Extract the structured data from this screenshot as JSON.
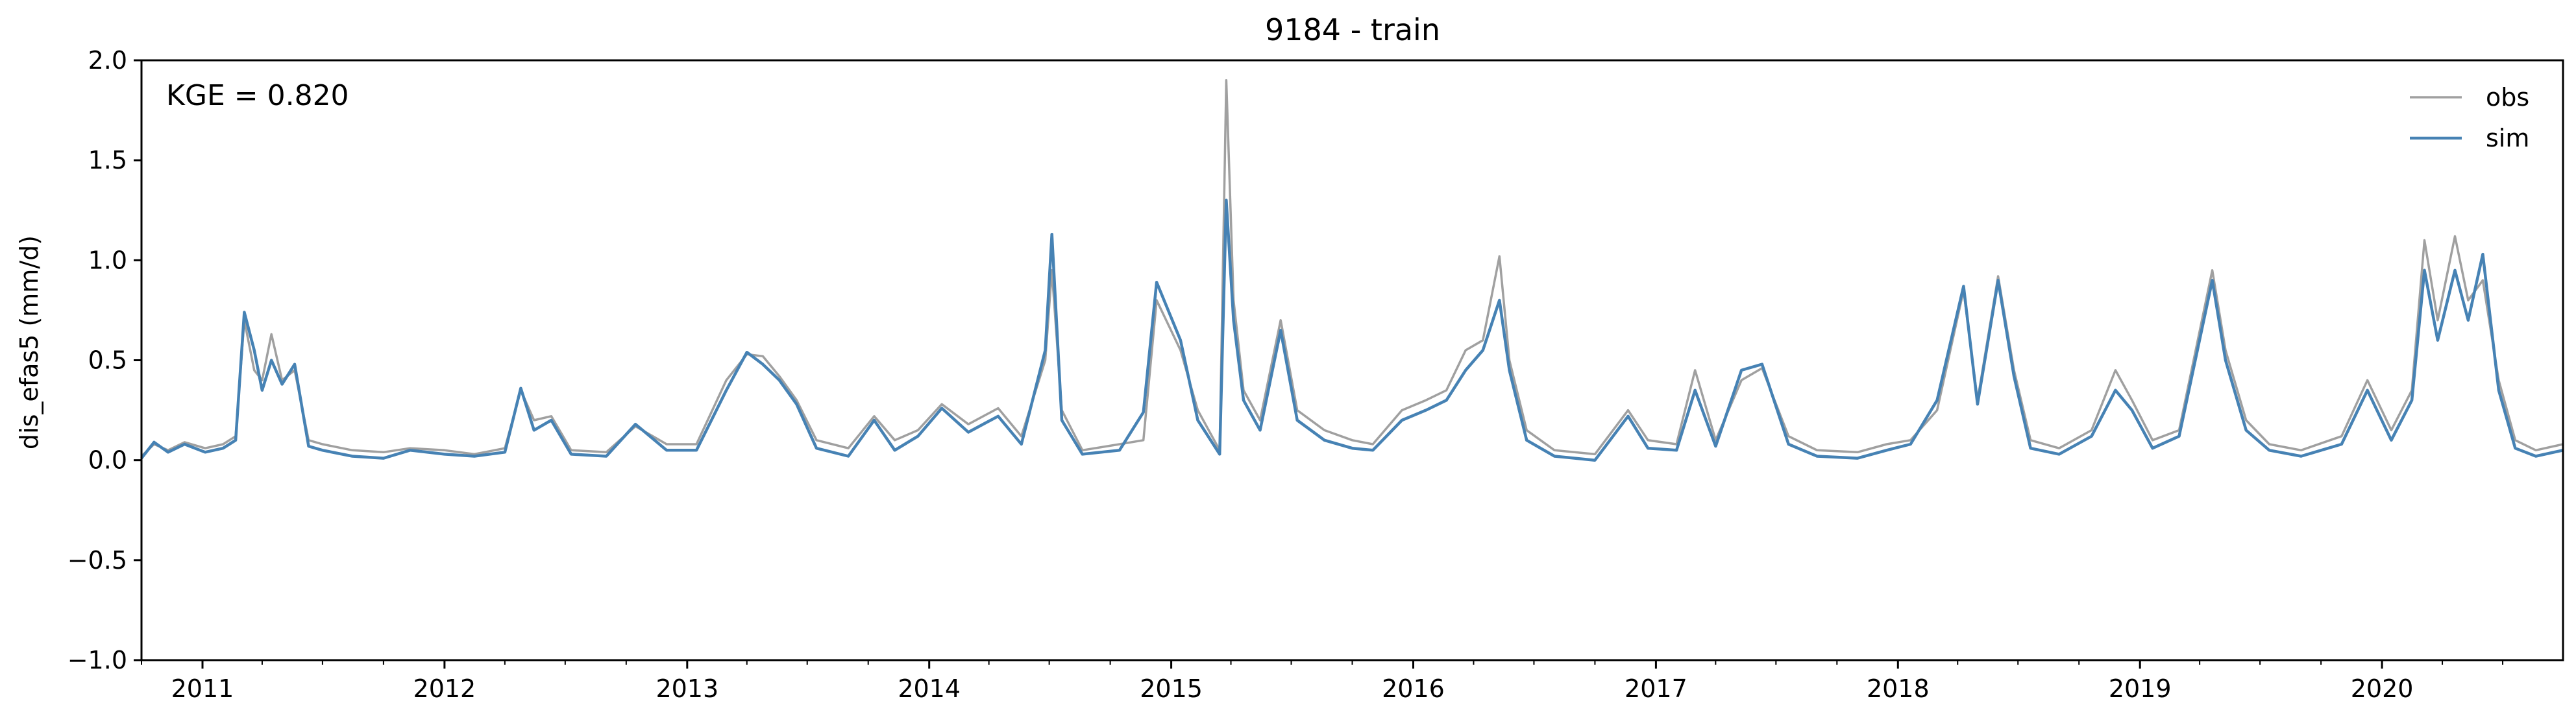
{
  "chart_data": {
    "type": "line",
    "title": "9184 - train",
    "xlabel": "",
    "ylabel": "dis_efas5 (mm/d)",
    "annotation": "KGE = 0.820",
    "xlim": [
      "2010-10-01",
      "2020-09-30"
    ],
    "ylim": [
      -1.0,
      2.0
    ],
    "yticks": [
      -1.0,
      -0.5,
      0.0,
      0.5,
      1.0,
      1.5,
      2.0
    ],
    "ytick_labels": [
      "−1.0",
      "−0.5",
      "0.0",
      "0.5",
      "1.0",
      "1.5",
      "2.0"
    ],
    "xtick_labels": [
      "2011",
      "2012",
      "2013",
      "2014",
      "2015",
      "2016",
      "2017",
      "2018",
      "2019",
      "2020"
    ],
    "xticks": [
      "2011-01-01",
      "2012-01-01",
      "2013-01-01",
      "2014-01-01",
      "2015-01-01",
      "2016-01-01",
      "2017-01-01",
      "2018-01-01",
      "2019-01-01",
      "2020-01-01"
    ],
    "grid": false,
    "legend_position": "top-right",
    "series": [
      {
        "name": "obs",
        "color": "#a0a0a0",
        "points": [
          [
            "2010-10-01",
            0.02
          ],
          [
            "2010-10-20",
            0.08
          ],
          [
            "2010-11-10",
            0.05
          ],
          [
            "2010-12-05",
            0.09
          ],
          [
            "2011-01-05",
            0.06
          ],
          [
            "2011-02-01",
            0.08
          ],
          [
            "2011-02-20",
            0.12
          ],
          [
            "2011-03-05",
            0.7
          ],
          [
            "2011-03-20",
            0.45
          ],
          [
            "2011-04-01",
            0.4
          ],
          [
            "2011-04-15",
            0.63
          ],
          [
            "2011-05-01",
            0.4
          ],
          [
            "2011-05-20",
            0.45
          ],
          [
            "2011-06-10",
            0.1
          ],
          [
            "2011-07-01",
            0.08
          ],
          [
            "2011-08-15",
            0.05
          ],
          [
            "2011-10-01",
            0.04
          ],
          [
            "2011-11-10",
            0.06
          ],
          [
            "2012-01-01",
            0.05
          ],
          [
            "2012-02-15",
            0.03
          ],
          [
            "2012-04-01",
            0.06
          ],
          [
            "2012-04-25",
            0.35
          ],
          [
            "2012-05-15",
            0.2
          ],
          [
            "2012-06-10",
            0.22
          ],
          [
            "2012-07-10",
            0.05
          ],
          [
            "2012-09-01",
            0.04
          ],
          [
            "2012-10-15",
            0.17
          ],
          [
            "2012-12-01",
            0.08
          ],
          [
            "2013-01-15",
            0.08
          ],
          [
            "2013-03-01",
            0.4
          ],
          [
            "2013-04-01",
            0.53
          ],
          [
            "2013-04-25",
            0.52
          ],
          [
            "2013-05-20",
            0.42
          ],
          [
            "2013-06-15",
            0.3
          ],
          [
            "2013-07-15",
            0.1
          ],
          [
            "2013-09-01",
            0.06
          ],
          [
            "2013-10-10",
            0.22
          ],
          [
            "2013-11-10",
            0.1
          ],
          [
            "2013-12-15",
            0.15
          ],
          [
            "2014-01-20",
            0.28
          ],
          [
            "2014-03-01",
            0.18
          ],
          [
            "2014-04-15",
            0.26
          ],
          [
            "2014-05-20",
            0.12
          ],
          [
            "2014-06-25",
            0.5
          ],
          [
            "2014-07-05",
            0.95
          ],
          [
            "2014-07-20",
            0.25
          ],
          [
            "2014-08-20",
            0.05
          ],
          [
            "2014-10-15",
            0.08
          ],
          [
            "2014-11-20",
            0.1
          ],
          [
            "2014-12-10",
            0.8
          ],
          [
            "2015-01-15",
            0.55
          ],
          [
            "2015-02-10",
            0.25
          ],
          [
            "2015-03-15",
            0.05
          ],
          [
            "2015-03-25",
            1.9
          ],
          [
            "2015-04-05",
            0.8
          ],
          [
            "2015-04-20",
            0.35
          ],
          [
            "2015-05-15",
            0.2
          ],
          [
            "2015-06-15",
            0.7
          ],
          [
            "2015-07-10",
            0.25
          ],
          [
            "2015-08-20",
            0.15
          ],
          [
            "2015-10-01",
            0.1
          ],
          [
            "2015-11-01",
            0.08
          ],
          [
            "2015-12-15",
            0.25
          ],
          [
            "2016-01-20",
            0.3
          ],
          [
            "2016-02-20",
            0.35
          ],
          [
            "2016-03-20",
            0.55
          ],
          [
            "2016-04-15",
            0.6
          ],
          [
            "2016-05-10",
            1.02
          ],
          [
            "2016-05-25",
            0.5
          ],
          [
            "2016-06-20",
            0.15
          ],
          [
            "2016-08-01",
            0.05
          ],
          [
            "2016-10-01",
            0.03
          ],
          [
            "2016-11-20",
            0.25
          ],
          [
            "2016-12-20",
            0.1
          ],
          [
            "2017-02-01",
            0.08
          ],
          [
            "2017-03-01",
            0.45
          ],
          [
            "2017-04-01",
            0.1
          ],
          [
            "2017-05-10",
            0.4
          ],
          [
            "2017-06-10",
            0.46
          ],
          [
            "2017-07-20",
            0.12
          ],
          [
            "2017-09-01",
            0.05
          ],
          [
            "2017-11-01",
            0.04
          ],
          [
            "2017-12-15",
            0.08
          ],
          [
            "2018-01-20",
            0.1
          ],
          [
            "2018-03-01",
            0.25
          ],
          [
            "2018-04-10",
            0.85
          ],
          [
            "2018-05-01",
            0.3
          ],
          [
            "2018-06-01",
            0.92
          ],
          [
            "2018-06-25",
            0.45
          ],
          [
            "2018-07-20",
            0.1
          ],
          [
            "2018-09-01",
            0.06
          ],
          [
            "2018-10-20",
            0.15
          ],
          [
            "2018-11-25",
            0.45
          ],
          [
            "2018-12-20",
            0.3
          ],
          [
            "2019-01-20",
            0.1
          ],
          [
            "2019-03-01",
            0.15
          ],
          [
            "2019-04-20",
            0.95
          ],
          [
            "2019-05-10",
            0.55
          ],
          [
            "2019-06-10",
            0.2
          ],
          [
            "2019-07-15",
            0.08
          ],
          [
            "2019-09-01",
            0.05
          ],
          [
            "2019-11-01",
            0.12
          ],
          [
            "2019-12-10",
            0.4
          ],
          [
            "2020-01-15",
            0.15
          ],
          [
            "2020-02-15",
            0.35
          ],
          [
            "2020-03-05",
            1.1
          ],
          [
            "2020-03-25",
            0.7
          ],
          [
            "2020-04-20",
            1.12
          ],
          [
            "2020-05-10",
            0.8
          ],
          [
            "2020-06-01",
            0.9
          ],
          [
            "2020-06-25",
            0.4
          ],
          [
            "2020-07-20",
            0.1
          ],
          [
            "2020-08-20",
            0.05
          ],
          [
            "2020-09-30",
            0.08
          ]
        ]
      },
      {
        "name": "sim",
        "color": "#4682b4",
        "points": [
          [
            "2010-10-01",
            0.01
          ],
          [
            "2010-10-20",
            0.09
          ],
          [
            "2010-11-10",
            0.04
          ],
          [
            "2010-12-05",
            0.08
          ],
          [
            "2011-01-05",
            0.04
          ],
          [
            "2011-02-01",
            0.06
          ],
          [
            "2011-02-20",
            0.1
          ],
          [
            "2011-03-05",
            0.74
          ],
          [
            "2011-03-20",
            0.55
          ],
          [
            "2011-04-01",
            0.35
          ],
          [
            "2011-04-15",
            0.5
          ],
          [
            "2011-05-01",
            0.38
          ],
          [
            "2011-05-20",
            0.48
          ],
          [
            "2011-06-10",
            0.07
          ],
          [
            "2011-07-01",
            0.05
          ],
          [
            "2011-08-15",
            0.02
          ],
          [
            "2011-10-01",
            0.01
          ],
          [
            "2011-11-10",
            0.05
          ],
          [
            "2012-01-01",
            0.03
          ],
          [
            "2012-02-15",
            0.02
          ],
          [
            "2012-04-01",
            0.04
          ],
          [
            "2012-04-25",
            0.36
          ],
          [
            "2012-05-15",
            0.15
          ],
          [
            "2012-06-10",
            0.2
          ],
          [
            "2012-07-10",
            0.03
          ],
          [
            "2012-09-01",
            0.02
          ],
          [
            "2012-10-15",
            0.18
          ],
          [
            "2012-12-01",
            0.05
          ],
          [
            "2013-01-15",
            0.05
          ],
          [
            "2013-03-01",
            0.35
          ],
          [
            "2013-04-01",
            0.54
          ],
          [
            "2013-04-25",
            0.48
          ],
          [
            "2013-05-20",
            0.4
          ],
          [
            "2013-06-15",
            0.28
          ],
          [
            "2013-07-15",
            0.06
          ],
          [
            "2013-09-01",
            0.02
          ],
          [
            "2013-10-10",
            0.2
          ],
          [
            "2013-11-10",
            0.05
          ],
          [
            "2013-12-15",
            0.12
          ],
          [
            "2014-01-20",
            0.26
          ],
          [
            "2014-03-01",
            0.14
          ],
          [
            "2014-04-15",
            0.22
          ],
          [
            "2014-05-20",
            0.08
          ],
          [
            "2014-06-25",
            0.55
          ],
          [
            "2014-07-05",
            1.13
          ],
          [
            "2014-07-20",
            0.2
          ],
          [
            "2014-08-20",
            0.03
          ],
          [
            "2014-10-15",
            0.05
          ],
          [
            "2014-11-20",
            0.24
          ],
          [
            "2014-12-10",
            0.89
          ],
          [
            "2015-01-15",
            0.6
          ],
          [
            "2015-02-10",
            0.2
          ],
          [
            "2015-03-15",
            0.03
          ],
          [
            "2015-03-25",
            1.3
          ],
          [
            "2015-04-05",
            0.7
          ],
          [
            "2015-04-20",
            0.3
          ],
          [
            "2015-05-15",
            0.15
          ],
          [
            "2015-06-15",
            0.65
          ],
          [
            "2015-07-10",
            0.2
          ],
          [
            "2015-08-20",
            0.1
          ],
          [
            "2015-10-01",
            0.06
          ],
          [
            "2015-11-01",
            0.05
          ],
          [
            "2015-12-15",
            0.2
          ],
          [
            "2016-01-20",
            0.25
          ],
          [
            "2016-02-20",
            0.3
          ],
          [
            "2016-03-20",
            0.45
          ],
          [
            "2016-04-15",
            0.55
          ],
          [
            "2016-05-10",
            0.8
          ],
          [
            "2016-05-25",
            0.45
          ],
          [
            "2016-06-20",
            0.1
          ],
          [
            "2016-08-01",
            0.02
          ],
          [
            "2016-10-01",
            0.0
          ],
          [
            "2016-11-20",
            0.22
          ],
          [
            "2016-12-20",
            0.06
          ],
          [
            "2017-02-01",
            0.05
          ],
          [
            "2017-03-01",
            0.35
          ],
          [
            "2017-04-01",
            0.07
          ],
          [
            "2017-05-10",
            0.45
          ],
          [
            "2017-06-10",
            0.48
          ],
          [
            "2017-07-20",
            0.08
          ],
          [
            "2017-09-01",
            0.02
          ],
          [
            "2017-11-01",
            0.01
          ],
          [
            "2017-12-15",
            0.05
          ],
          [
            "2018-01-20",
            0.08
          ],
          [
            "2018-03-01",
            0.3
          ],
          [
            "2018-04-10",
            0.87
          ],
          [
            "2018-05-01",
            0.28
          ],
          [
            "2018-06-01",
            0.9
          ],
          [
            "2018-06-25",
            0.42
          ],
          [
            "2018-07-20",
            0.06
          ],
          [
            "2018-09-01",
            0.03
          ],
          [
            "2018-10-20",
            0.12
          ],
          [
            "2018-11-25",
            0.35
          ],
          [
            "2018-12-20",
            0.25
          ],
          [
            "2019-01-20",
            0.06
          ],
          [
            "2019-03-01",
            0.12
          ],
          [
            "2019-04-20",
            0.9
          ],
          [
            "2019-05-10",
            0.5
          ],
          [
            "2019-06-10",
            0.15
          ],
          [
            "2019-07-15",
            0.05
          ],
          [
            "2019-09-01",
            0.02
          ],
          [
            "2019-11-01",
            0.08
          ],
          [
            "2019-12-10",
            0.35
          ],
          [
            "2020-01-15",
            0.1
          ],
          [
            "2020-02-15",
            0.3
          ],
          [
            "2020-03-05",
            0.95
          ],
          [
            "2020-03-25",
            0.6
          ],
          [
            "2020-04-20",
            0.95
          ],
          [
            "2020-05-10",
            0.7
          ],
          [
            "2020-06-01",
            1.03
          ],
          [
            "2020-06-25",
            0.35
          ],
          [
            "2020-07-20",
            0.06
          ],
          [
            "2020-08-20",
            0.02
          ],
          [
            "2020-09-30",
            0.05
          ]
        ]
      }
    ]
  }
}
